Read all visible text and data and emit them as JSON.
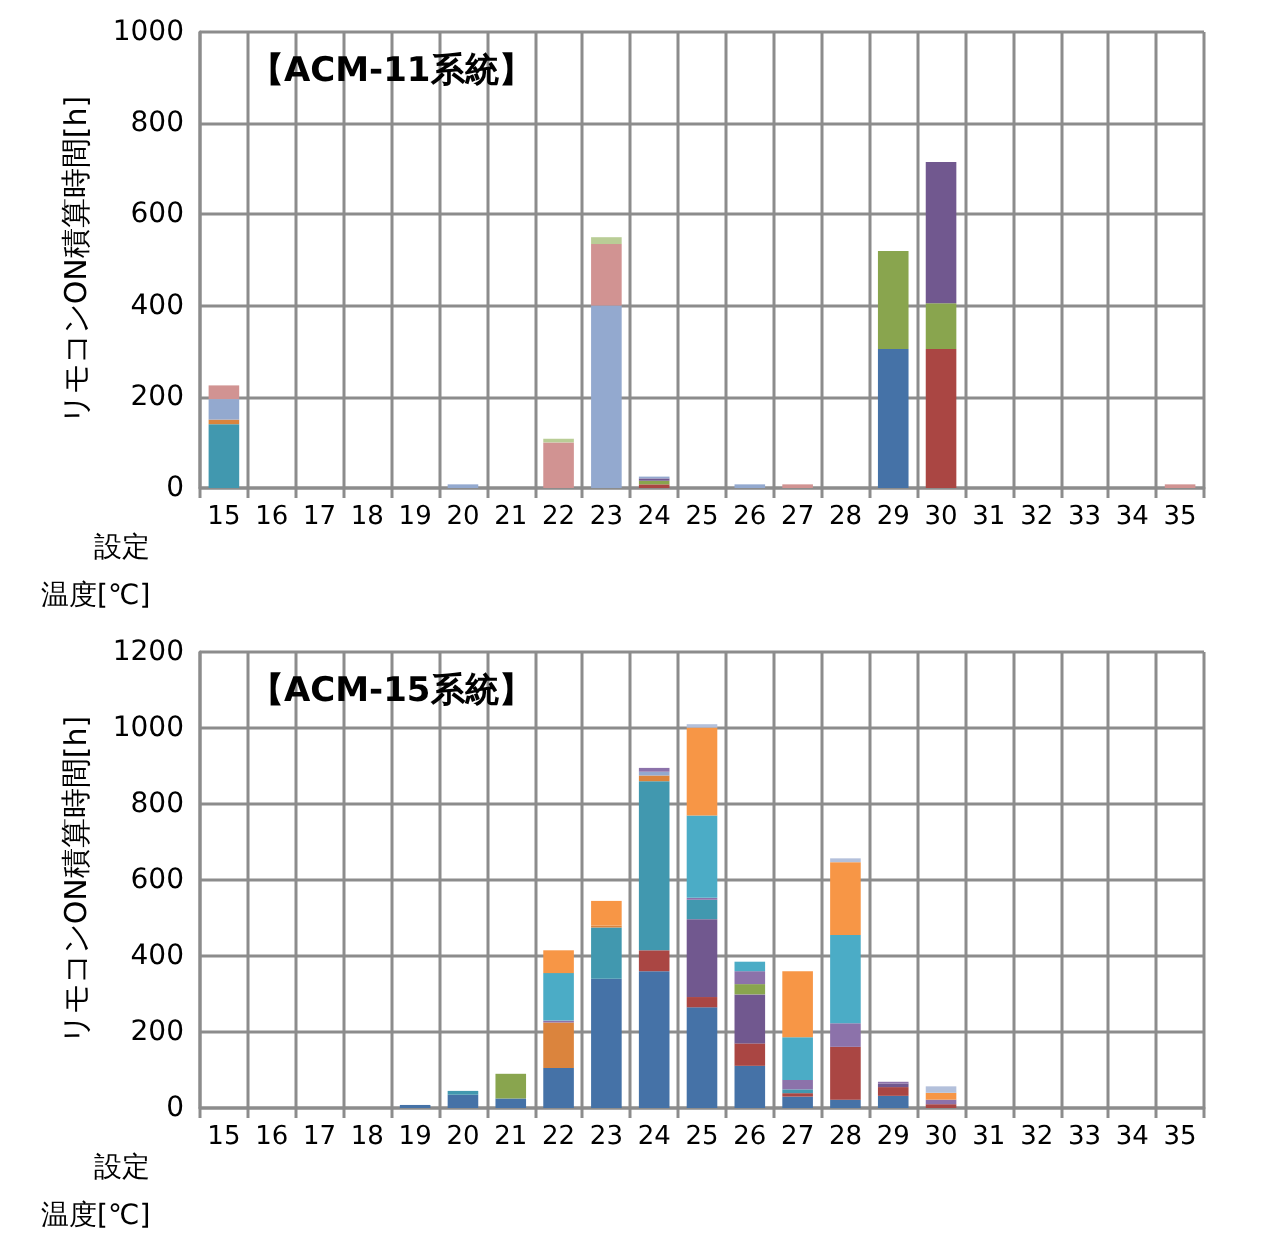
{
  "chart_data": [
    {
      "type": "bar",
      "title": "【ACM-11系統】",
      "xlabel": "設定温度[℃]",
      "ylabel": "リモコンON積算時間[h]",
      "stacked": true,
      "grid": true,
      "categories": [
        "15",
        "16",
        "17",
        "18",
        "19",
        "20",
        "21",
        "22",
        "23",
        "24",
        "25",
        "26",
        "27",
        "28",
        "29",
        "30",
        "31",
        "32",
        "33",
        "34",
        "35"
      ],
      "ylim": [
        0,
        1000
      ],
      "yticks": [
        0,
        200,
        400,
        600,
        800,
        1000
      ],
      "series": [
        {
          "color": "#4572a7",
          "values": [
            0,
            0,
            0,
            0,
            0,
            0,
            0,
            0,
            0,
            0,
            0,
            0,
            0,
            0,
            305,
            0,
            0,
            0,
            0,
            0,
            0
          ]
        },
        {
          "color": "#aa4643",
          "values": [
            0,
            0,
            0,
            0,
            0,
            0,
            0,
            0,
            0,
            8,
            0,
            0,
            0,
            0,
            0,
            305,
            0,
            0,
            0,
            0,
            0
          ]
        },
        {
          "color": "#89a54e",
          "values": [
            0,
            0,
            0,
            0,
            0,
            0,
            0,
            0,
            0,
            8,
            0,
            0,
            0,
            0,
            215,
            100,
            0,
            0,
            0,
            0,
            0
          ]
        },
        {
          "color": "#71588f",
          "values": [
            0,
            0,
            0,
            0,
            0,
            0,
            0,
            0,
            0,
            5,
            0,
            0,
            0,
            0,
            0,
            310,
            0,
            0,
            0,
            0,
            0
          ]
        },
        {
          "color": "#4198af",
          "values": [
            140,
            0,
            0,
            0,
            0,
            0,
            0,
            0,
            0,
            0,
            0,
            0,
            0,
            0,
            0,
            0,
            0,
            0,
            0,
            0,
            0
          ]
        },
        {
          "color": "#db843d",
          "values": [
            10,
            0,
            0,
            0,
            0,
            0,
            0,
            0,
            0,
            0,
            0,
            0,
            0,
            0,
            0,
            0,
            0,
            0,
            0,
            0,
            0
          ]
        },
        {
          "color": "#93a9cf",
          "values": [
            45,
            0,
            0,
            0,
            0,
            8,
            0,
            0,
            400,
            4,
            0,
            8,
            0,
            0,
            0,
            0,
            0,
            0,
            0,
            0,
            0
          ]
        },
        {
          "color": "#d19392",
          "values": [
            30,
            0,
            0,
            0,
            0,
            0,
            0,
            100,
            135,
            0,
            0,
            0,
            8,
            0,
            0,
            0,
            0,
            0,
            0,
            0,
            8
          ]
        },
        {
          "color": "#b9cd96",
          "values": [
            0,
            0,
            0,
            0,
            0,
            0,
            0,
            8,
            15,
            0,
            0,
            0,
            0,
            0,
            0,
            0,
            0,
            0,
            0,
            0,
            0
          ]
        }
      ]
    },
    {
      "type": "bar",
      "title": "【ACM-15系統】",
      "xlabel": "設定温度[℃]",
      "ylabel": "リモコンON積算時間[h]",
      "stacked": true,
      "grid": true,
      "categories": [
        "15",
        "16",
        "17",
        "18",
        "19",
        "20",
        "21",
        "22",
        "23",
        "24",
        "25",
        "26",
        "27",
        "28",
        "29",
        "30",
        "31",
        "32",
        "33",
        "34",
        "35"
      ],
      "ylim": [
        0,
        1200
      ],
      "yticks": [
        0,
        200,
        400,
        600,
        800,
        1000,
        1200
      ],
      "series": [
        {
          "color": "#4572a7",
          "values": [
            0,
            0,
            0,
            0,
            8,
            35,
            25,
            105,
            340,
            360,
            265,
            111,
            30,
            22,
            32,
            0,
            0,
            0,
            0,
            0,
            0
          ]
        },
        {
          "color": "#aa4643",
          "values": [
            0,
            0,
            0,
            0,
            0,
            0,
            0,
            0,
            0,
            55,
            27,
            59,
            9,
            139,
            23,
            10,
            0,
            0,
            0,
            0,
            0
          ]
        },
        {
          "color": "#71588f",
          "values": [
            0,
            0,
            0,
            0,
            0,
            0,
            0,
            0,
            0,
            0,
            205,
            129,
            0,
            0,
            9,
            0,
            0,
            0,
            0,
            0,
            0
          ]
        },
        {
          "color": "#89a54e",
          "values": [
            0,
            0,
            0,
            0,
            0,
            0,
            65,
            0,
            0,
            0,
            0,
            27,
            0,
            0,
            0,
            0,
            0,
            0,
            0,
            0,
            0
          ]
        },
        {
          "color": "#4198af",
          "values": [
            0,
            0,
            0,
            0,
            0,
            10,
            0,
            0,
            135,
            445,
            51,
            0,
            10,
            0,
            0,
            0,
            0,
            0,
            0,
            0,
            0
          ]
        },
        {
          "color": "#db843d",
          "values": [
            0,
            0,
            0,
            0,
            0,
            0,
            0,
            120,
            5,
            15,
            0,
            0,
            0,
            0,
            0,
            0,
            0,
            0,
            0,
            0,
            0
          ]
        },
        {
          "color": "#93a9cf",
          "values": [
            0,
            0,
            0,
            0,
            0,
            0,
            0,
            0,
            0,
            10,
            0,
            0,
            0,
            0,
            0,
            0,
            0,
            0,
            0,
            0,
            0
          ]
        },
        {
          "color": "#8c72aa",
          "values": [
            0,
            0,
            0,
            0,
            0,
            0,
            0,
            5,
            0,
            10,
            5,
            34,
            25,
            62,
            5,
            12,
            0,
            0,
            0,
            0,
            0
          ]
        },
        {
          "color": "#4bacc6",
          "values": [
            0,
            0,
            0,
            0,
            0,
            0,
            0,
            125,
            0,
            0,
            217,
            25,
            112,
            232,
            0,
            0,
            0,
            0,
            0,
            0,
            0
          ]
        },
        {
          "color": "#f79646",
          "values": [
            0,
            0,
            0,
            0,
            0,
            0,
            0,
            60,
            65,
            0,
            231,
            0,
            174,
            192,
            0,
            18,
            0,
            0,
            0,
            0,
            0
          ]
        },
        {
          "color": "#b3c0db",
          "values": [
            0,
            0,
            0,
            0,
            0,
            0,
            0,
            0,
            0,
            0,
            9,
            0,
            0,
            10,
            0,
            17,
            0,
            0,
            0,
            0,
            0
          ]
        }
      ]
    }
  ]
}
